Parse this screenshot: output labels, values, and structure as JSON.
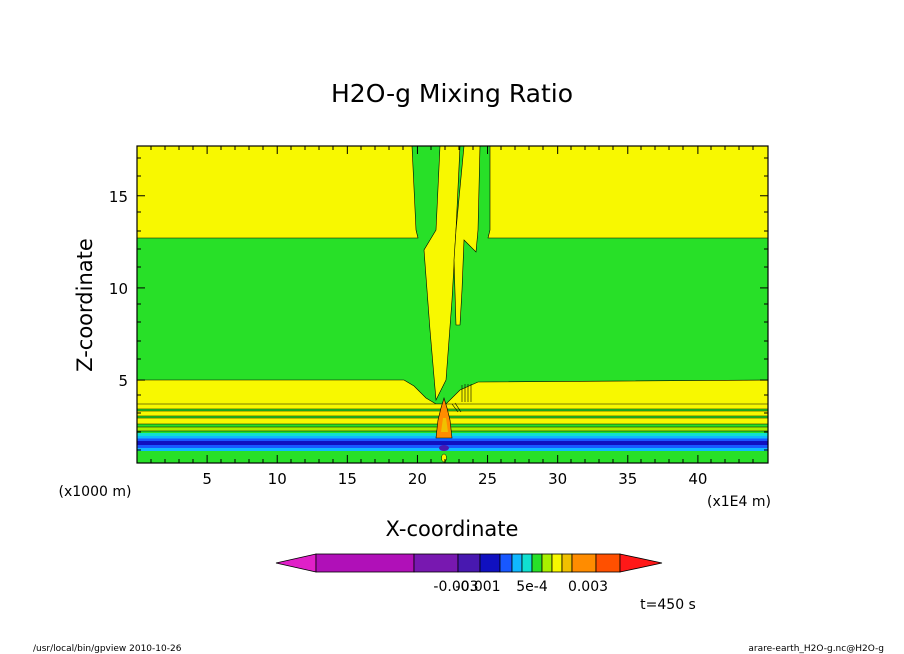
{
  "chart_data": {
    "type": "heatmap",
    "title": "H2O-g Mixing Ratio",
    "xlabel": "X-coordinate",
    "ylabel": "Z-coordinate",
    "x_unit": "(x1E4 m)",
    "y_unit": "(x1000 m)",
    "xlim": [
      0,
      45
    ],
    "ylim": [
      0.5,
      17.7
    ],
    "x_ticks": [
      5,
      10,
      15,
      20,
      25,
      30,
      35,
      40
    ],
    "y_ticks": [
      5,
      10,
      15
    ],
    "colorbar": {
      "colors": [
        "#e020c8",
        "#b010b8",
        "#7818b0",
        "#4818b0",
        "#1010c0",
        "#1858ff",
        "#10b8ff",
        "#10e0d0",
        "#28e028",
        "#a8f000",
        "#f8f800",
        "#f0c000",
        "#ff8c00",
        "#ff5000",
        "#ff1818"
      ],
      "tick_labels": [
        "-0.003",
        "-0.001",
        "5e-4",
        "0.003"
      ]
    },
    "time_label": "t=450 s",
    "grid": false
  },
  "footer": {
    "left": "/usr/local/bin/gpview   2010-10-26",
    "right": "arare-earth_H2O-g.nc@H2O-g"
  }
}
